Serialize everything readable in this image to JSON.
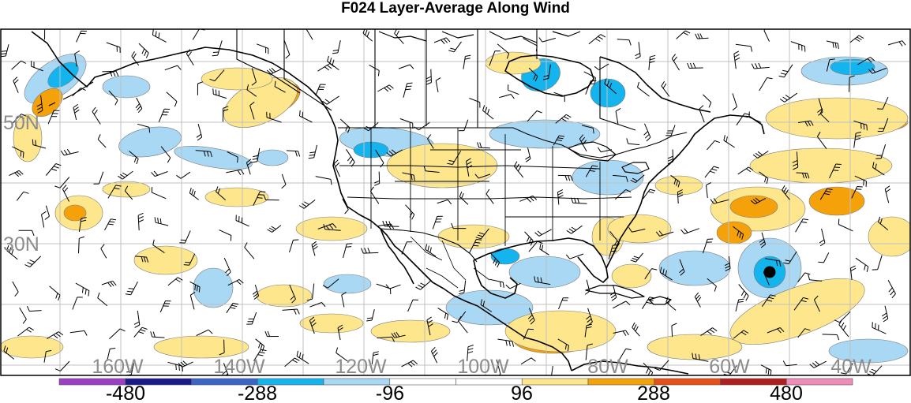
{
  "title": "F024 Layer-Average Along Wind",
  "map": {
    "lat_labels": [
      "50N",
      "30N"
    ],
    "lon_labels": [
      "160W",
      "140W",
      "120W",
      "100W",
      "80W",
      "60W",
      "40W"
    ],
    "storm_marker": "hurricane-center-dot"
  },
  "colorbar": {
    "labels": [
      "-480",
      "-288",
      "-96",
      "96",
      "288",
      "480"
    ],
    "colors": [
      "#9c3fc4",
      "#1a1a8c",
      "#3a64c8",
      "#14b4ee",
      "#a8d8f4",
      "#ffffff",
      "#ffffff",
      "#fde68c",
      "#f5a20a",
      "#e8501a",
      "#b01e1e",
      "#f08cb8"
    ]
  }
}
